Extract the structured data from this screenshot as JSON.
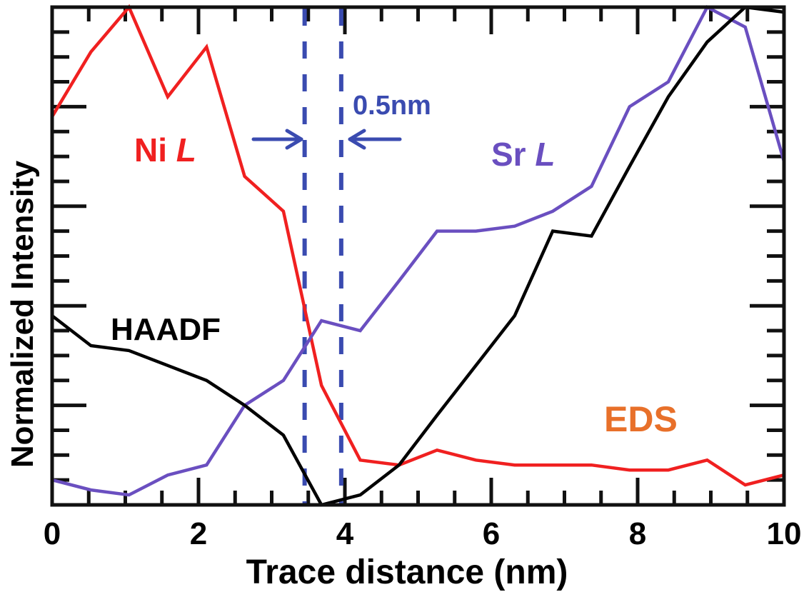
{
  "chart_data": {
    "type": "line",
    "title": "",
    "xlabel": "Trace distance (nm)",
    "ylabel": "Normalized Intensity",
    "xlim": [
      0,
      10
    ],
    "ylim": [
      0,
      1
    ],
    "x_ticks": [
      0,
      2,
      4,
      6,
      8,
      10
    ],
    "x_tick_labels": [
      "0",
      "2",
      "4",
      "6",
      "8",
      "10"
    ],
    "y_tick_labels": [],
    "grid": false,
    "legend": "inline text labels",
    "x": [
      0,
      0.53,
      1.05,
      1.58,
      2.11,
      2.63,
      3.16,
      3.68,
      4.21,
      4.74,
      5.26,
      5.79,
      6.32,
      6.84,
      7.37,
      7.89,
      8.42,
      8.95,
      9.47,
      10
    ],
    "series": [
      {
        "name": "Ni L",
        "color": "#F02020",
        "values": [
          0.78,
          0.91,
          1.0,
          0.82,
          0.92,
          0.66,
          0.59,
          0.24,
          0.09,
          0.08,
          0.11,
          0.09,
          0.08,
          0.08,
          0.08,
          0.07,
          0.07,
          0.09,
          0.04,
          0.06
        ]
      },
      {
        "name": "Sr L",
        "color": "#6A4FC0",
        "values": [
          0.05,
          0.03,
          0.02,
          0.06,
          0.08,
          0.2,
          0.25,
          0.37,
          0.35,
          0.45,
          0.55,
          0.55,
          0.56,
          0.59,
          0.64,
          0.8,
          0.85,
          1.0,
          0.96,
          0.69
        ]
      },
      {
        "name": "HAADF",
        "color": "#000000",
        "values": [
          0.38,
          0.32,
          0.31,
          0.28,
          0.25,
          0.2,
          0.14,
          0.0,
          0.02,
          0.08,
          0.18,
          0.28,
          0.38,
          0.55,
          0.54,
          0.68,
          0.82,
          0.93,
          1.0,
          0.99
        ]
      }
    ],
    "annotations": [
      {
        "text": "Ni L",
        "color": "#F02020"
      },
      {
        "text": "Sr L",
        "color": "#6A4FC0"
      },
      {
        "text": "HAADF",
        "color": "#000000"
      },
      {
        "text": "EDS",
        "color": "#E8702A"
      },
      {
        "text": "0.5nm",
        "color": "#3A4BB0"
      }
    ],
    "vlines": [
      {
        "x": 3.45,
        "style": "dashed",
        "color": "#3A4BB0"
      },
      {
        "x": 3.95,
        "style": "dashed",
        "color": "#3A4BB0"
      }
    ]
  },
  "labels": {
    "ni": "Ni ",
    "ni_italic": "L",
    "sr": "Sr ",
    "sr_italic": "L",
    "haadf": "HAADF",
    "eds": "EDS",
    "scale": "0.5nm",
    "xlabel": "Trace distance (nm)",
    "ylabel": "Normalized Intensity"
  }
}
